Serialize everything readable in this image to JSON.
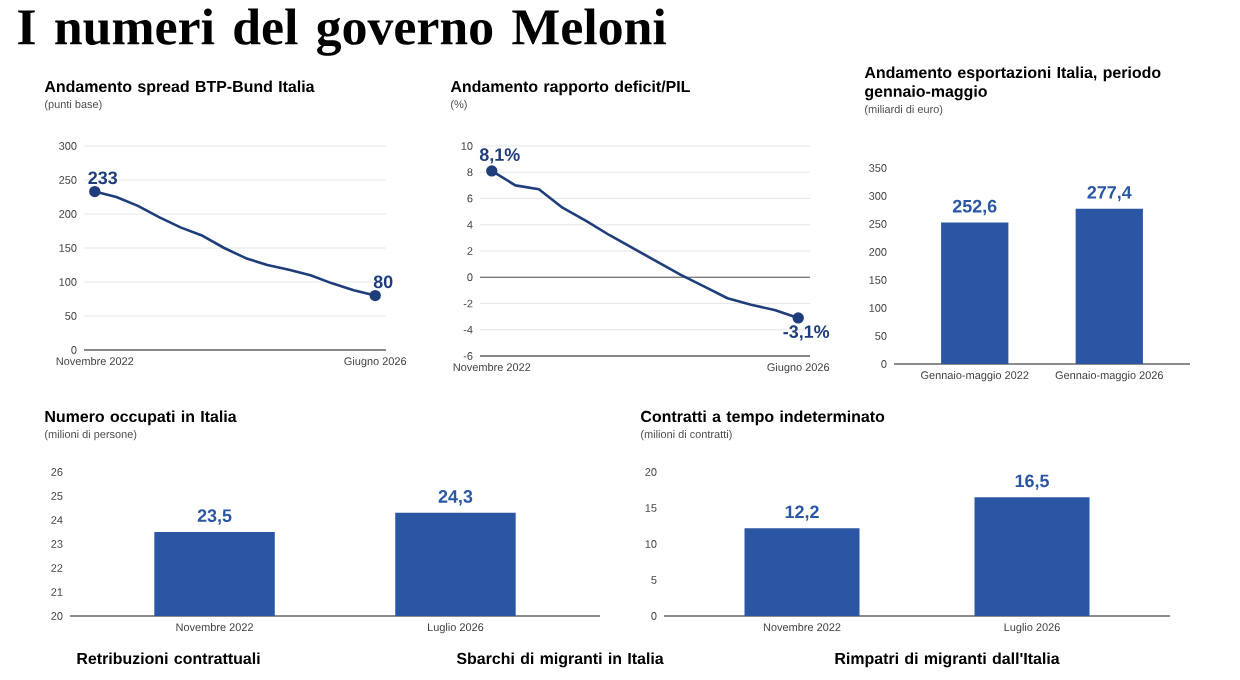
{
  "chart_data": [
    {
      "type": "other",
      "title": "I numeri del governo Meloni"
    },
    {
      "type": "line",
      "title": "Andamento spread BTP-Bund Italia",
      "ylabel": "(punti base)",
      "categories": [
        "Novembre 2022",
        null,
        null,
        null,
        null,
        null,
        null,
        null,
        null,
        null,
        null,
        null,
        null,
        "Giugno 2026"
      ],
      "values": [
        233,
        225,
        212,
        195,
        180,
        168,
        150,
        135,
        125,
        118,
        110,
        98,
        88,
        80
      ],
      "value_labels": [
        "233",
        null,
        null,
        null,
        null,
        null,
        null,
        null,
        null,
        null,
        null,
        null,
        null,
        "80"
      ],
      "color": "#1f3d7a",
      "ylim": [
        0,
        300
      ],
      "yticks": [
        0,
        50,
        100,
        150,
        200,
        250,
        300
      ],
      "grid": "y"
    },
    {
      "type": "line",
      "title": "Andamento rapporto deficit/PIL",
      "ylabel": "(%)",
      "categories": [
        "Novembre 2022",
        null,
        null,
        null,
        null,
        null,
        null,
        null,
        null,
        null,
        null,
        null,
        null,
        "Giugno 2026"
      ],
      "values": [
        8.1,
        7.0,
        6.7,
        5.3,
        4.3,
        3.2,
        2.2,
        1.2,
        0.2,
        -0.7,
        -1.6,
        -2.1,
        -2.5,
        -3.1
      ],
      "value_labels": [
        "8,1%",
        null,
        null,
        null,
        null,
        null,
        null,
        null,
        null,
        null,
        null,
        null,
        null,
        "-3,1%"
      ],
      "color": "#1f3d7a",
      "ylim": [
        -6,
        10
      ],
      "yticks": [
        -6,
        -4,
        -2,
        0,
        2,
        4,
        6,
        8,
        10
      ],
      "grid": "y",
      "ref_lines": [
        {
          "axis": "y",
          "value": 0,
          "color": "#555555"
        }
      ]
    },
    {
      "type": "bar",
      "title": "Andamento esportazioni Italia, periodo gennaio-maggio",
      "ylabel": "(miliardi di euro)",
      "categories": [
        "Gennaio-maggio 2022",
        "Gennaio-maggio 2026"
      ],
      "values": [
        252.6,
        277.4
      ],
      "value_labels": [
        "252,6",
        "277,4"
      ],
      "color": "#2b56a3",
      "ylim": [
        0,
        350
      ],
      "yticks": [
        0,
        50,
        100,
        150,
        200,
        250,
        300,
        350
      ]
    },
    {
      "type": "bar",
      "title": "Numero occupati in Italia",
      "ylabel": "(milioni di persone)",
      "categories": [
        "Novembre 2022",
        "Luglio 2026"
      ],
      "values": [
        23.5,
        24.3
      ],
      "value_labels": [
        "23,5",
        "24,3"
      ],
      "color": "#2b56a3",
      "ylim": [
        20,
        26
      ],
      "yticks": [
        20,
        21,
        22,
        23,
        24,
        25,
        26
      ]
    },
    {
      "type": "bar",
      "title": "Contratti a tempo indeterminato",
      "ylabel": "(milioni di contratti)",
      "categories": [
        "Novembre 2022",
        "Luglio 2026"
      ],
      "values": [
        12.2,
        16.5
      ],
      "value_labels": [
        "12,2",
        "16,5"
      ],
      "color": "#2b56a3",
      "ylim": [
        0,
        20
      ],
      "yticks": [
        0,
        5,
        10,
        15,
        20
      ]
    },
    {
      "type": "other",
      "title": "Retribuzioni contrattuali"
    },
    {
      "type": "other",
      "title": "Sbarchi di migranti in Italia"
    },
    {
      "type": "other",
      "title": "Rimpatri di migranti dall'Italia"
    }
  ]
}
